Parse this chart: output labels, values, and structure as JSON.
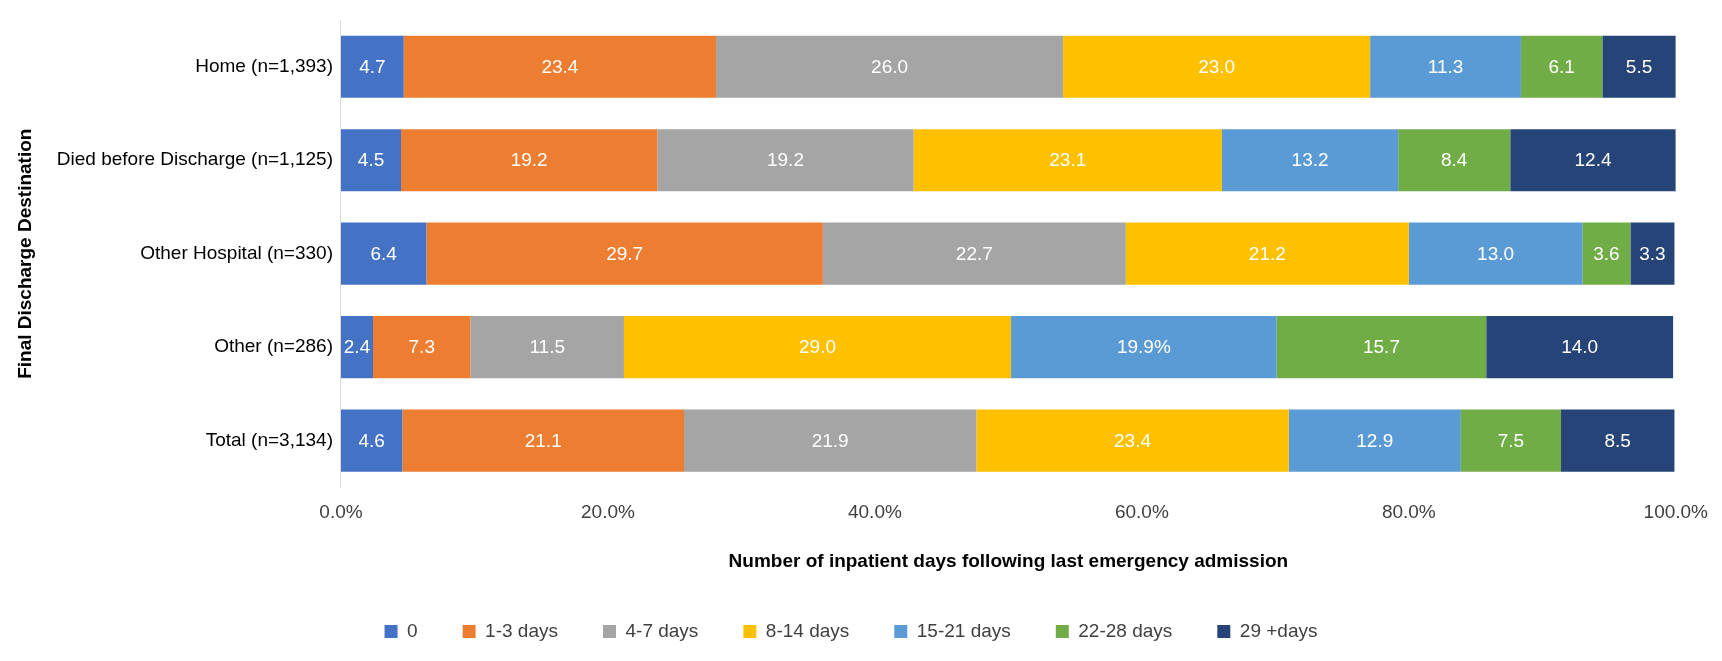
{
  "chart_data": {
    "type": "bar",
    "orientation": "horizontal",
    "stacked": true,
    "xlabel": "Number of inpatient days following last emergency admission",
    "ylabel": "Final Discharge Destination",
    "categories": [
      "Home (n=1,393)",
      "Died before Discharge (n=1,125)",
      "Other Hospital (n=330)",
      "Other (n=286)",
      "Total (n=3,134)"
    ],
    "series": [
      {
        "name": "0",
        "color": "#4472c4",
        "values": [
          4.7,
          4.5,
          6.4,
          2.4,
          4.6
        ],
        "value_labels": [
          "4.7",
          "4.5",
          "6.4",
          "2.4",
          "4.6"
        ]
      },
      {
        "name": "1-3 days",
        "color": "#ed7d31",
        "values": [
          23.4,
          19.2,
          29.7,
          7.3,
          21.1
        ],
        "value_labels": [
          "23.4",
          "19.2",
          "29.7",
          "7.3",
          "21.1"
        ]
      },
      {
        "name": "4-7 days",
        "color": "#a5a5a5",
        "values": [
          26.0,
          19.2,
          22.7,
          11.5,
          21.9
        ],
        "value_labels": [
          "26.0",
          "19.2",
          "22.7",
          "11.5",
          "21.9"
        ]
      },
      {
        "name": "8-14 days",
        "color": "#ffc000",
        "values": [
          23.0,
          23.1,
          21.2,
          29.0,
          23.4
        ],
        "value_labels": [
          "23.0",
          "23.1",
          "21.2",
          "29.0",
          "23.4"
        ]
      },
      {
        "name": "15-21 days",
        "color": "#5b9bd5",
        "values": [
          11.3,
          13.2,
          13.0,
          19.9,
          12.9
        ],
        "value_labels": [
          "11.3",
          "13.2",
          "13.0",
          "19.9%",
          "12.9"
        ]
      },
      {
        "name": "22-28 days",
        "color": "#70ad47",
        "values": [
          6.1,
          8.4,
          3.6,
          15.7,
          7.5
        ],
        "value_labels": [
          "6.1",
          "8.4",
          "3.6",
          "15.7",
          "7.5"
        ]
      },
      {
        "name": "29 +days",
        "color": "#264478",
        "values": [
          5.5,
          12.4,
          3.3,
          14.0,
          8.5
        ],
        "value_labels": [
          "5.5",
          "12.4",
          "3.3",
          "14.0",
          "8.5"
        ]
      }
    ],
    "xlim": [
      0,
      100
    ],
    "xticks": [
      {
        "value": 0,
        "label": "0.0%"
      },
      {
        "value": 20,
        "label": "20.0%"
      },
      {
        "value": 40,
        "label": "40.0%"
      },
      {
        "value": 60,
        "label": "60.0%"
      },
      {
        "value": 80,
        "label": "80.0%"
      },
      {
        "value": 100,
        "label": "100.0%"
      }
    ],
    "grid": false,
    "legend": "bottom"
  }
}
